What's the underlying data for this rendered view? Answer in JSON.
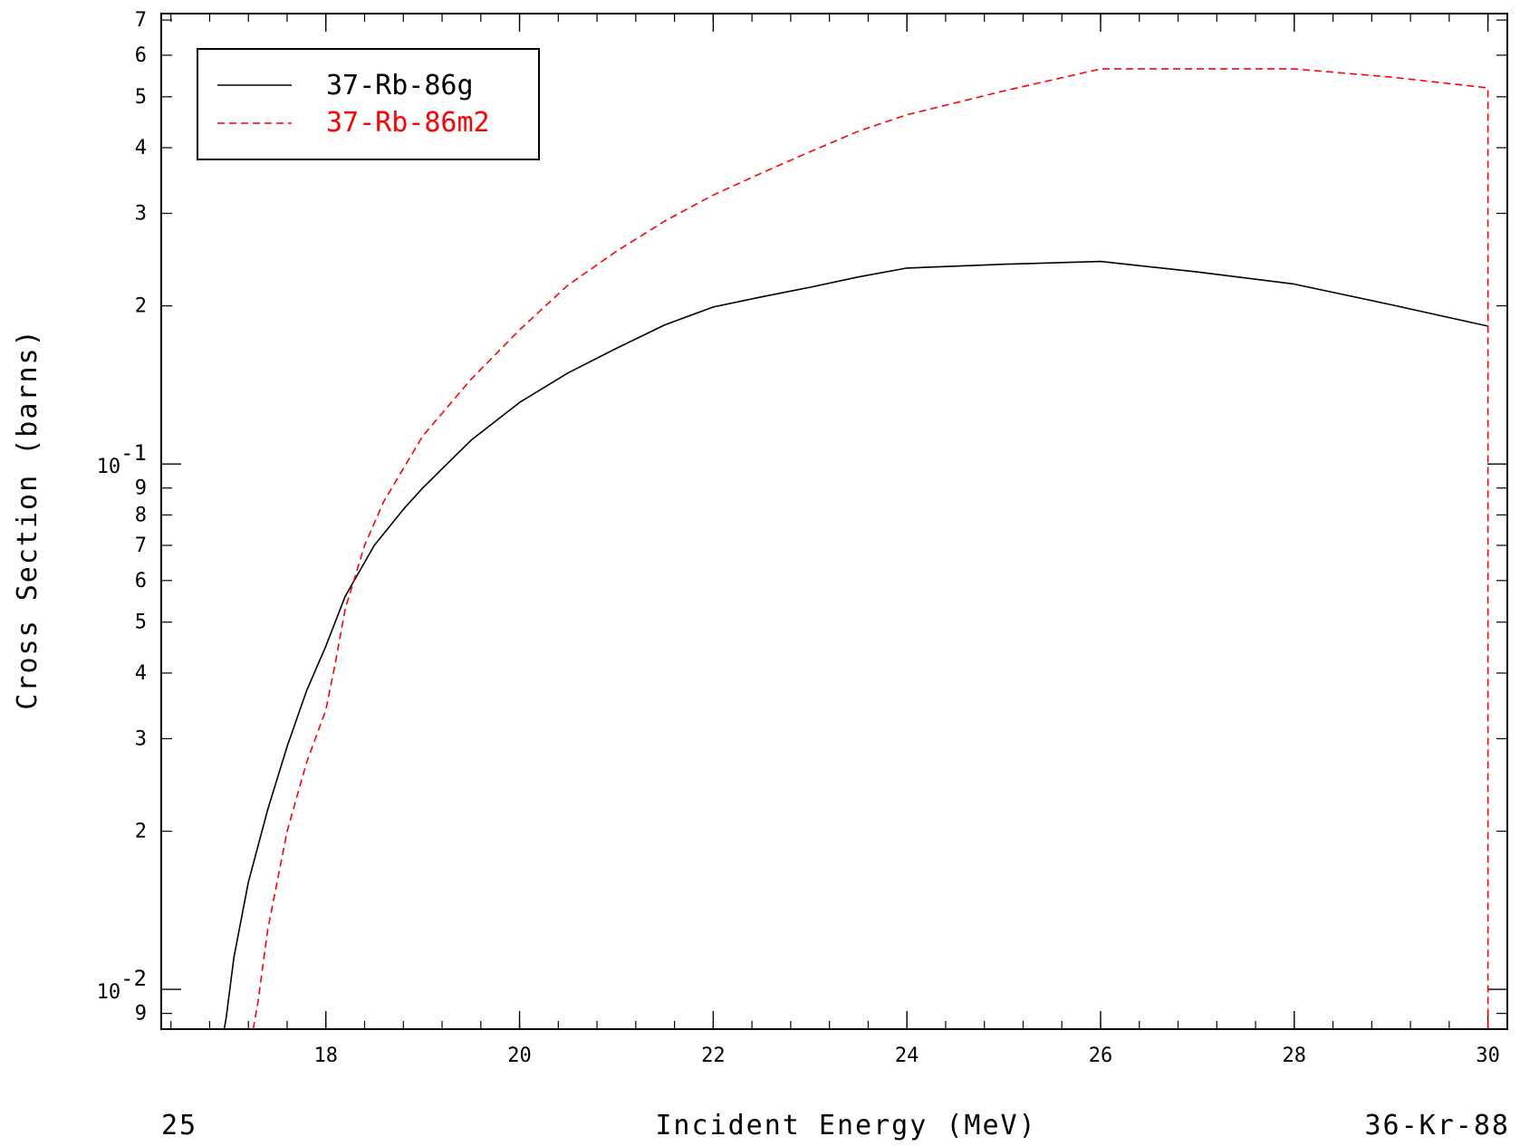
{
  "chart_data": {
    "type": "line",
    "title": "",
    "xlabel": "Incident Energy (MeV)",
    "ylabel": "Cross Section (barns)",
    "x_scale": "linear",
    "y_scale": "log",
    "xlim": [
      16.3,
      30.2
    ],
    "ylim": [
      0.0084,
      0.72
    ],
    "x_ticks": [
      18,
      20,
      22,
      24,
      26,
      28,
      30
    ],
    "x_tick_labels": [
      "18",
      "20",
      "22",
      "24",
      "26",
      "28",
      "30"
    ],
    "y_decade_labels": [
      {
        "value": 0.1,
        "base": "10",
        "exp": "-1"
      },
      {
        "value": 0.01,
        "base": "10",
        "exp": "-2"
      }
    ],
    "y_minor_labels": [
      {
        "value": 0.009,
        "label": "9"
      },
      {
        "value": 0.02,
        "label": "2"
      },
      {
        "value": 0.03,
        "label": "3"
      },
      {
        "value": 0.04,
        "label": "4"
      },
      {
        "value": 0.05,
        "label": "5"
      },
      {
        "value": 0.06,
        "label": "6"
      },
      {
        "value": 0.07,
        "label": "7"
      },
      {
        "value": 0.08,
        "label": "8"
      },
      {
        "value": 0.09,
        "label": "9"
      },
      {
        "value": 0.2,
        "label": "2"
      },
      {
        "value": 0.3,
        "label": "3"
      },
      {
        "value": 0.4,
        "label": "4"
      },
      {
        "value": 0.5,
        "label": "5"
      },
      {
        "value": 0.6,
        "label": "6"
      },
      {
        "value": 0.7,
        "label": "7"
      }
    ],
    "legend_position": "top-left",
    "grid": false,
    "series": [
      {
        "name": "37-Rb-86g",
        "color": "#000000",
        "style": "solid",
        "points": [
          [
            16.95,
            0.0084
          ],
          [
            16.97,
            0.0088
          ],
          [
            17.05,
            0.0115
          ],
          [
            17.2,
            0.016
          ],
          [
            17.4,
            0.022
          ],
          [
            17.6,
            0.029
          ],
          [
            17.8,
            0.037
          ],
          [
            18.0,
            0.045
          ],
          [
            18.2,
            0.056
          ],
          [
            18.5,
            0.07
          ],
          [
            18.8,
            0.082
          ],
          [
            19.0,
            0.09
          ],
          [
            19.5,
            0.111
          ],
          [
            20.0,
            0.131
          ],
          [
            20.5,
            0.149
          ],
          [
            21.0,
            0.166
          ],
          [
            21.5,
            0.184
          ],
          [
            22.0,
            0.199
          ],
          [
            22.5,
            0.208
          ],
          [
            23.0,
            0.217
          ],
          [
            23.5,
            0.227
          ],
          [
            24.0,
            0.236
          ],
          [
            25.0,
            0.24
          ],
          [
            26.0,
            0.243
          ],
          [
            27.0,
            0.232
          ],
          [
            28.0,
            0.22
          ],
          [
            29.0,
            0.201
          ],
          [
            30.0,
            0.183
          ]
        ]
      },
      {
        "name": "37-Rb-86m2",
        "color": "#ff0000",
        "style": "dashed",
        "points": [
          [
            17.25,
            0.0084
          ],
          [
            17.3,
            0.0095
          ],
          [
            17.4,
            0.013
          ],
          [
            17.6,
            0.02
          ],
          [
            17.8,
            0.027
          ],
          [
            18.0,
            0.034
          ],
          [
            18.1,
            0.042
          ],
          [
            18.2,
            0.053
          ],
          [
            18.4,
            0.07
          ],
          [
            18.6,
            0.085
          ],
          [
            19.0,
            0.113
          ],
          [
            19.5,
            0.145
          ],
          [
            20.0,
            0.18
          ],
          [
            20.5,
            0.219
          ],
          [
            21.0,
            0.254
          ],
          [
            21.5,
            0.29
          ],
          [
            22.0,
            0.325
          ],
          [
            22.5,
            0.358
          ],
          [
            23.0,
            0.393
          ],
          [
            23.5,
            0.43
          ],
          [
            24.0,
            0.462
          ],
          [
            25.0,
            0.513
          ],
          [
            26.0,
            0.565
          ],
          [
            27.0,
            0.565
          ],
          [
            28.0,
            0.565
          ],
          [
            29.0,
            0.545
          ],
          [
            30.0,
            0.52
          ],
          [
            30.0,
            0.0084
          ]
        ]
      }
    ]
  },
  "footer": {
    "left_label": "25",
    "right_label": "36-Kr-88"
  }
}
